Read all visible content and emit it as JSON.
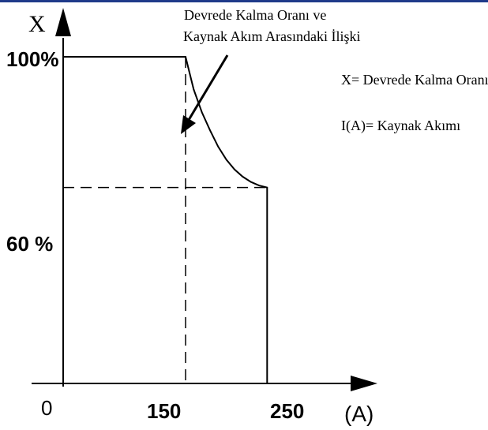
{
  "chart_data": {
    "type": "line",
    "title": "Devrede Kalma Oranı ve Kaynak Akım Arasındaki İlişki",
    "title_lines": [
      "Devrede Kalma Oranı ve",
      "Kaynak Akım Arasındaki İlişki"
    ],
    "ylabel": "X",
    "xlabel": "(A)",
    "origin_label": "0",
    "x_ticks": [
      "150",
      "250"
    ],
    "y_ticks": [
      "100%",
      "60 %"
    ],
    "xlim": [
      0,
      300
    ],
    "ylim": [
      0,
      130
    ],
    "series": [
      {
        "x": [
          0,
          150,
          160,
          170,
          180,
          190,
          200,
          210,
          220,
          230,
          240,
          250,
          250
        ],
        "y": [
          100,
          100,
          90,
          83,
          77.5,
          72.5,
          68.5,
          65.5,
          63.3,
          61.7,
          60.6,
          60,
          0
        ]
      }
    ],
    "reference_lines": [
      {
        "orientation": "vertical",
        "x": 150,
        "y_range": [
          0,
          100
        ],
        "style": "dashed"
      },
      {
        "orientation": "horizontal",
        "y": 60,
        "x_range": [
          0,
          250
        ],
        "style": "dashed"
      }
    ],
    "legend": [
      "X= Devrede Kalma Oranı",
      "I(A)= Kaynak Akımı"
    ],
    "legend_position": "right",
    "grid": false,
    "colors": {
      "line": "#000000",
      "background": "#ffffff",
      "top_rule": "#1f3a8a"
    }
  }
}
